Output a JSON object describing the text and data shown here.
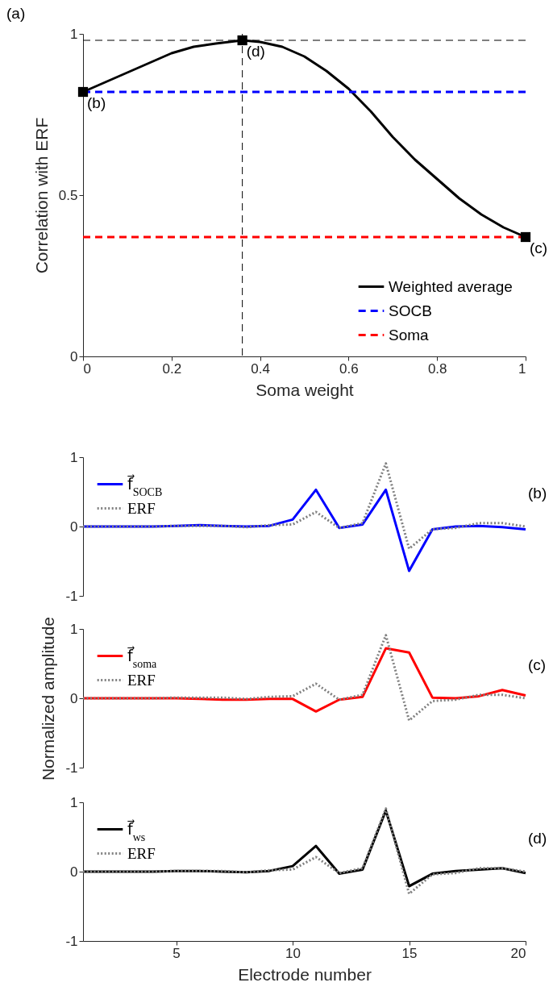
{
  "chart_data": [
    {
      "type": "line",
      "xlabel": "Soma weight",
      "ylabel": "Correlation with ERF",
      "xlim": [
        0,
        1
      ],
      "xticks": [
        0,
        0.2,
        0.4,
        0.6,
        0.8,
        1
      ],
      "ylim": [
        0,
        1
      ],
      "yticks": [
        0,
        0.5,
        1
      ],
      "legend": "bottom right",
      "annotations": [
        "(a)",
        {
          "text": "(b)",
          "x": 0,
          "y": 0.82
        },
        {
          "text": "(d)",
          "x": 0.36,
          "y": 0.98
        },
        {
          "text": "(c)",
          "x": 1,
          "y": 0.37
        }
      ],
      "ref_lines": [
        {
          "axis": "x",
          "value": 0.36,
          "color": "#000000",
          "line_style": "dashed"
        },
        {
          "axis": "y",
          "value": 0.98,
          "color": "#000000",
          "line_style": "dashed"
        }
      ],
      "series": [
        {
          "name": "Weighted average",
          "color": "#000000",
          "line_style": "solid",
          "x": [
            0,
            0.05,
            0.1,
            0.15,
            0.2,
            0.25,
            0.3,
            0.36,
            0.4,
            0.45,
            0.5,
            0.55,
            0.6,
            0.65,
            0.7,
            0.75,
            0.8,
            0.85,
            0.9,
            0.95,
            1
          ],
          "values": [
            0.82,
            0.85,
            0.88,
            0.91,
            0.94,
            0.96,
            0.97,
            0.98,
            0.975,
            0.96,
            0.93,
            0.885,
            0.83,
            0.76,
            0.68,
            0.61,
            0.55,
            0.49,
            0.44,
            0.4,
            0.37
          ]
        },
        {
          "name": "SOCB",
          "color": "#0000ff",
          "line_style": "dashed",
          "x": [
            0,
            1
          ],
          "values": [
            0.82,
            0.82
          ]
        },
        {
          "name": "Soma",
          "color": "#ff0000",
          "line_style": "dashed",
          "x": [
            0,
            1
          ],
          "values": [
            0.37,
            0.37
          ]
        },
        {
          "type": "scatter",
          "color": "#000000",
          "marker": "square",
          "x": [
            0,
            0.36,
            1
          ],
          "values": [
            0.82,
            0.98,
            0.37
          ]
        }
      ]
    },
    {
      "type": "line",
      "x": [
        1,
        2,
        3,
        4,
        5,
        6,
        7,
        8,
        9,
        10,
        11,
        12,
        13,
        14,
        15,
        16,
        17,
        18,
        19,
        20
      ],
      "xlim": [
        1,
        20
      ],
      "xticks": [
        5,
        10,
        15,
        20
      ],
      "ylim": [
        -1,
        1
      ],
      "yticks": [
        -1,
        0,
        1
      ],
      "tick_labels": "y",
      "legend": "top left",
      "annotations": [
        "(b)"
      ],
      "series": [
        {
          "name": "f⃗$_{SOCB}$",
          "color": "#0000ff",
          "line_style": "solid",
          "values": [
            0,
            0,
            0,
            0,
            0.01,
            0.02,
            0.01,
            0,
            0.01,
            0.1,
            0.53,
            -0.02,
            0.03,
            0.53,
            -0.64,
            -0.04,
            0,
            0.01,
            -0.01,
            -0.04
          ]
        },
        {
          "name": "ERF",
          "color": "#808080",
          "line_style": "dotted",
          "values": [
            0,
            0,
            0,
            0,
            0.01,
            0.01,
            0.01,
            -0.01,
            0.02,
            0.03,
            0.21,
            -0.02,
            0.05,
            0.91,
            -0.32,
            -0.04,
            -0.02,
            0.05,
            0.05,
            0
          ]
        }
      ]
    },
    {
      "type": "line",
      "x": [
        1,
        2,
        3,
        4,
        5,
        6,
        7,
        8,
        9,
        10,
        11,
        12,
        13,
        14,
        15,
        16,
        17,
        18,
        19,
        20
      ],
      "ylabel": "Normalized amplitude",
      "xlim": [
        1,
        20
      ],
      "xticks": [
        5,
        10,
        15,
        20
      ],
      "ylim": [
        -1,
        1
      ],
      "yticks": [
        -1,
        0,
        1
      ],
      "tick_labels": "y",
      "legend": "top left",
      "annotations": [
        "(c)"
      ],
      "series": [
        {
          "name": "f⃗$_{soma}$",
          "color": "#ff0000",
          "line_style": "solid",
          "values": [
            0,
            0,
            0,
            0,
            0,
            -0.01,
            -0.02,
            -0.02,
            -0.01,
            -0.01,
            -0.19,
            -0.02,
            0.02,
            0.72,
            0.66,
            0.01,
            0,
            0.03,
            0.12,
            0.04
          ]
        },
        {
          "name": "ERF",
          "color": "#808080",
          "line_style": "dotted",
          "values": [
            0,
            0,
            0,
            0,
            0.01,
            0.01,
            0.01,
            -0.01,
            0.02,
            0.03,
            0.21,
            -0.02,
            0.05,
            0.91,
            -0.32,
            -0.04,
            -0.02,
            0.05,
            0.05,
            0
          ]
        }
      ]
    },
    {
      "type": "line",
      "x": [
        1,
        2,
        3,
        4,
        5,
        6,
        7,
        8,
        9,
        10,
        11,
        12,
        13,
        14,
        15,
        16,
        17,
        18,
        19,
        20
      ],
      "xlabel": "Electrode number",
      "xlim": [
        1,
        20
      ],
      "xticks": [
        5,
        10,
        15,
        20
      ],
      "ylim": [
        -1,
        1
      ],
      "yticks": [
        -1,
        0,
        1
      ],
      "legend": "top left",
      "annotations": [
        "(d)"
      ],
      "series": [
        {
          "name": "f⃗$_{ws}$",
          "color": "#000000",
          "line_style": "solid",
          "values": [
            0,
            0,
            0,
            0,
            0.01,
            0.01,
            0,
            -0.01,
            0.01,
            0.08,
            0.37,
            -0.03,
            0.03,
            0.88,
            -0.21,
            -0.03,
            0.01,
            0.03,
            0.05,
            -0.02
          ]
        },
        {
          "name": "ERF",
          "color": "#808080",
          "line_style": "dotted",
          "values": [
            0,
            0,
            0,
            0,
            0.01,
            0.01,
            0.01,
            -0.01,
            0.02,
            0.03,
            0.21,
            -0.02,
            0.05,
            0.91,
            -0.32,
            -0.04,
            -0.02,
            0.05,
            0.05,
            0
          ]
        }
      ]
    }
  ]
}
